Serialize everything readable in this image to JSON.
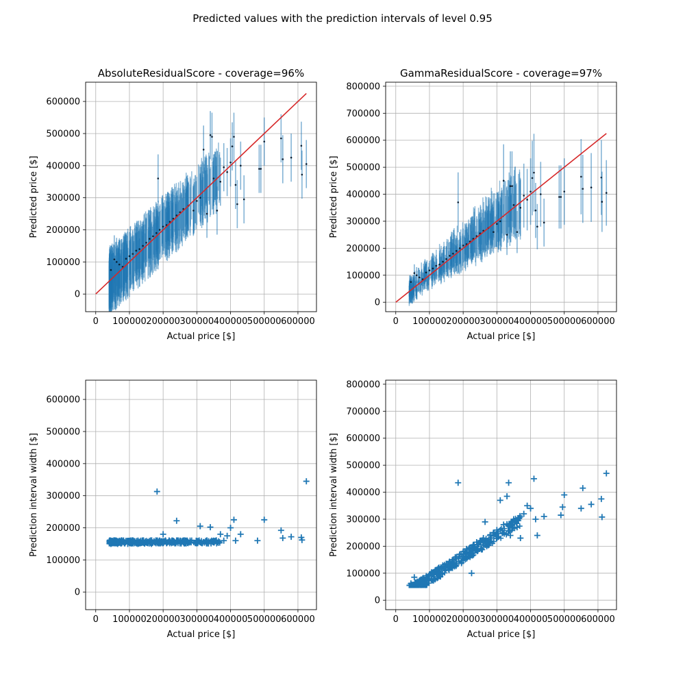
{
  "suptitle": "Predicted values with the prediction intervals of level 0.95",
  "colors": {
    "series": "#1f77b4",
    "identity": "#d62728",
    "point": "#0b1f33",
    "grid": "#b0b0b0"
  },
  "chart_data": [
    {
      "type": "scatter",
      "panel": "top-left",
      "title": "AbsoluteResidualScore - coverage=96%",
      "xlabel": "Actual price [$]",
      "ylabel": "Predicted price [$]",
      "xlim": [
        -30000,
        655000
      ],
      "ylim": [
        -55000,
        660000
      ],
      "xticks": [
        0,
        100000,
        200000,
        300000,
        400000,
        500000,
        600000
      ],
      "yticks": [
        0,
        100000,
        200000,
        300000,
        400000,
        500000,
        600000
      ],
      "grid": true,
      "identity_line": [
        [
          0,
          0
        ],
        [
          625000,
          625000
        ]
      ],
      "interval": {
        "kind": "absolute",
        "width": 150000
      },
      "points": [
        [
          45000,
          75000
        ],
        [
          55000,
          108000
        ],
        [
          62000,
          100000
        ],
        [
          70000,
          92000
        ],
        [
          80000,
          85000
        ],
        [
          90000,
          110000
        ],
        [
          100000,
          118000
        ],
        [
          110000,
          125000
        ],
        [
          120000,
          135000
        ],
        [
          130000,
          140000
        ],
        [
          140000,
          150000
        ],
        [
          150000,
          160000
        ],
        [
          160000,
          172000
        ],
        [
          170000,
          180000
        ],
        [
          180000,
          190000
        ],
        [
          185000,
          360000
        ],
        [
          190000,
          200000
        ],
        [
          200000,
          210000
        ],
        [
          210000,
          215000
        ],
        [
          220000,
          225000
        ],
        [
          230000,
          235000
        ],
        [
          240000,
          245000
        ],
        [
          250000,
          255000
        ],
        [
          260000,
          265000
        ],
        [
          275000,
          275000
        ],
        [
          290000,
          260000
        ],
        [
          300000,
          290000
        ],
        [
          310000,
          300000
        ],
        [
          320000,
          450000
        ],
        [
          330000,
          250000
        ],
        [
          340000,
          495000
        ],
        [
          345000,
          490000
        ],
        [
          350000,
          360000
        ],
        [
          360000,
          260000
        ],
        [
          370000,
          350000
        ],
        [
          380000,
          395000
        ],
        [
          390000,
          380000
        ],
        [
          400000,
          410000
        ],
        [
          405000,
          460000
        ],
        [
          410000,
          490000
        ],
        [
          415000,
          340000
        ],
        [
          420000,
          280000
        ],
        [
          430000,
          400000
        ],
        [
          440000,
          295000
        ],
        [
          485000,
          390000
        ],
        [
          490000,
          390000
        ],
        [
          500000,
          475000
        ],
        [
          550000,
          485000
        ],
        [
          555000,
          420000
        ],
        [
          580000,
          425000
        ],
        [
          610000,
          462000
        ],
        [
          612000,
          372000
        ],
        [
          625000,
          405000
        ]
      ]
    },
    {
      "type": "scatter",
      "panel": "top-right",
      "title": "GammaResidualScore - coverage=97%",
      "xlabel": "Actual price [$]",
      "ylabel": "Predicted price [$]",
      "xlim": [
        -30000,
        655000
      ],
      "ylim": [
        -35000,
        815000
      ],
      "xticks": [
        0,
        100000,
        200000,
        300000,
        400000,
        500000,
        600000
      ],
      "yticks": [
        0,
        100000,
        200000,
        300000,
        400000,
        500000,
        600000,
        700000,
        800000
      ],
      "grid": true,
      "identity_line": [
        [
          0,
          0
        ],
        [
          625000,
          625000
        ]
      ],
      "interval": {
        "kind": "relative",
        "factor": 0.6
      },
      "points": [
        [
          45000,
          75000
        ],
        [
          55000,
          108000
        ],
        [
          62000,
          100000
        ],
        [
          70000,
          92000
        ],
        [
          80000,
          85000
        ],
        [
          90000,
          110000
        ],
        [
          100000,
          118000
        ],
        [
          110000,
          125000
        ],
        [
          120000,
          135000
        ],
        [
          130000,
          140000
        ],
        [
          140000,
          150000
        ],
        [
          150000,
          160000
        ],
        [
          160000,
          172000
        ],
        [
          170000,
          180000
        ],
        [
          180000,
          190000
        ],
        [
          185000,
          370000
        ],
        [
          190000,
          200000
        ],
        [
          200000,
          210000
        ],
        [
          210000,
          215000
        ],
        [
          220000,
          225000
        ],
        [
          230000,
          235000
        ],
        [
          240000,
          245000
        ],
        [
          250000,
          255000
        ],
        [
          260000,
          265000
        ],
        [
          275000,
          275000
        ],
        [
          290000,
          260000
        ],
        [
          300000,
          290000
        ],
        [
          310000,
          300000
        ],
        [
          320000,
          450000
        ],
        [
          330000,
          250000
        ],
        [
          340000,
          430000
        ],
        [
          345000,
          430000
        ],
        [
          350000,
          360000
        ],
        [
          360000,
          260000
        ],
        [
          370000,
          350000
        ],
        [
          380000,
          395000
        ],
        [
          390000,
          380000
        ],
        [
          400000,
          410000
        ],
        [
          405000,
          460000
        ],
        [
          410000,
          480000
        ],
        [
          415000,
          340000
        ],
        [
          420000,
          280000
        ],
        [
          430000,
          400000
        ],
        [
          440000,
          295000
        ],
        [
          485000,
          390000
        ],
        [
          490000,
          390000
        ],
        [
          500000,
          410000
        ],
        [
          550000,
          465000
        ],
        [
          555000,
          420000
        ],
        [
          580000,
          425000
        ],
        [
          610000,
          462000
        ],
        [
          612000,
          372000
        ],
        [
          625000,
          405000
        ]
      ]
    },
    {
      "type": "scatter",
      "panel": "bottom-left",
      "title": "",
      "xlabel": "Actual price [$]",
      "ylabel": "Prediction interval width [$]",
      "xlim": [
        -30000,
        655000
      ],
      "ylim": [
        -55000,
        660000
      ],
      "xticks": [
        0,
        100000,
        200000,
        300000,
        400000,
        500000,
        600000
      ],
      "yticks": [
        0,
        100000,
        200000,
        300000,
        400000,
        500000,
        600000
      ],
      "grid": true,
      "marker": "+",
      "points": [
        [
          45000,
          150000
        ],
        [
          55000,
          152000
        ],
        [
          65000,
          150000
        ],
        [
          75000,
          151000
        ],
        [
          85000,
          152000
        ],
        [
          95000,
          150000
        ],
        [
          105000,
          151000
        ],
        [
          115000,
          152000
        ],
        [
          125000,
          150000
        ],
        [
          135000,
          153000
        ],
        [
          145000,
          151000
        ],
        [
          155000,
          152000
        ],
        [
          165000,
          150000
        ],
        [
          175000,
          155000
        ],
        [
          182000,
          313000
        ],
        [
          190000,
          160000
        ],
        [
          200000,
          180000
        ],
        [
          210000,
          152000
        ],
        [
          220000,
          158000
        ],
        [
          240000,
          222000
        ],
        [
          250000,
          160000
        ],
        [
          260000,
          155000
        ],
        [
          280000,
          160000
        ],
        [
          300000,
          158000
        ],
        [
          310000,
          205000
        ],
        [
          330000,
          160000
        ],
        [
          340000,
          202000
        ],
        [
          350000,
          155000
        ],
        [
          370000,
          180000
        ],
        [
          380000,
          160000
        ],
        [
          390000,
          175000
        ],
        [
          400000,
          200000
        ],
        [
          410000,
          225000
        ],
        [
          415000,
          160000
        ],
        [
          430000,
          180000
        ],
        [
          480000,
          160000
        ],
        [
          500000,
          225000
        ],
        [
          550000,
          192000
        ],
        [
          555000,
          168000
        ],
        [
          580000,
          172000
        ],
        [
          610000,
          170000
        ],
        [
          612000,
          162000
        ],
        [
          625000,
          345000
        ]
      ]
    },
    {
      "type": "scatter",
      "panel": "bottom-right",
      "title": "",
      "xlabel": "Actual price [$]",
      "ylabel": "Prediction interval width [$]",
      "xlim": [
        -30000,
        655000
      ],
      "ylim": [
        -35000,
        815000
      ],
      "xticks": [
        0,
        100000,
        200000,
        300000,
        400000,
        500000,
        600000
      ],
      "yticks": [
        0,
        100000,
        200000,
        300000,
        400000,
        500000,
        600000,
        700000,
        800000
      ],
      "grid": true,
      "marker": "+",
      "points": [
        [
          45000,
          62000
        ],
        [
          55000,
          85000
        ],
        [
          60000,
          65000
        ],
        [
          70000,
          72000
        ],
        [
          80000,
          80000
        ],
        [
          90000,
          85000
        ],
        [
          100000,
          95000
        ],
        [
          110000,
          100000
        ],
        [
          120000,
          110000
        ],
        [
          130000,
          115000
        ],
        [
          140000,
          125000
        ],
        [
          150000,
          135000
        ],
        [
          160000,
          140000
        ],
        [
          170000,
          150000
        ],
        [
          180000,
          160000
        ],
        [
          185000,
          435000
        ],
        [
          190000,
          170000
        ],
        [
          200000,
          180000
        ],
        [
          210000,
          190000
        ],
        [
          220000,
          195000
        ],
        [
          225000,
          100000
        ],
        [
          230000,
          205000
        ],
        [
          240000,
          215000
        ],
        [
          250000,
          220000
        ],
        [
          260000,
          230000
        ],
        [
          265000,
          290000
        ],
        [
          280000,
          240000
        ],
        [
          290000,
          250000
        ],
        [
          300000,
          260000
        ],
        [
          310000,
          370000
        ],
        [
          320000,
          280000
        ],
        [
          330000,
          385000
        ],
        [
          335000,
          435000
        ],
        [
          340000,
          240000
        ],
        [
          350000,
          300000
        ],
        [
          360000,
          270000
        ],
        [
          370000,
          230000
        ],
        [
          380000,
          320000
        ],
        [
          390000,
          350000
        ],
        [
          400000,
          340000
        ],
        [
          410000,
          450000
        ],
        [
          415000,
          300000
        ],
        [
          420000,
          240000
        ],
        [
          440000,
          310000
        ],
        [
          490000,
          315000
        ],
        [
          495000,
          345000
        ],
        [
          500000,
          390000
        ],
        [
          550000,
          340000
        ],
        [
          555000,
          415000
        ],
        [
          580000,
          355000
        ],
        [
          610000,
          375000
        ],
        [
          612000,
          308000
        ],
        [
          625000,
          470000
        ]
      ]
    }
  ]
}
